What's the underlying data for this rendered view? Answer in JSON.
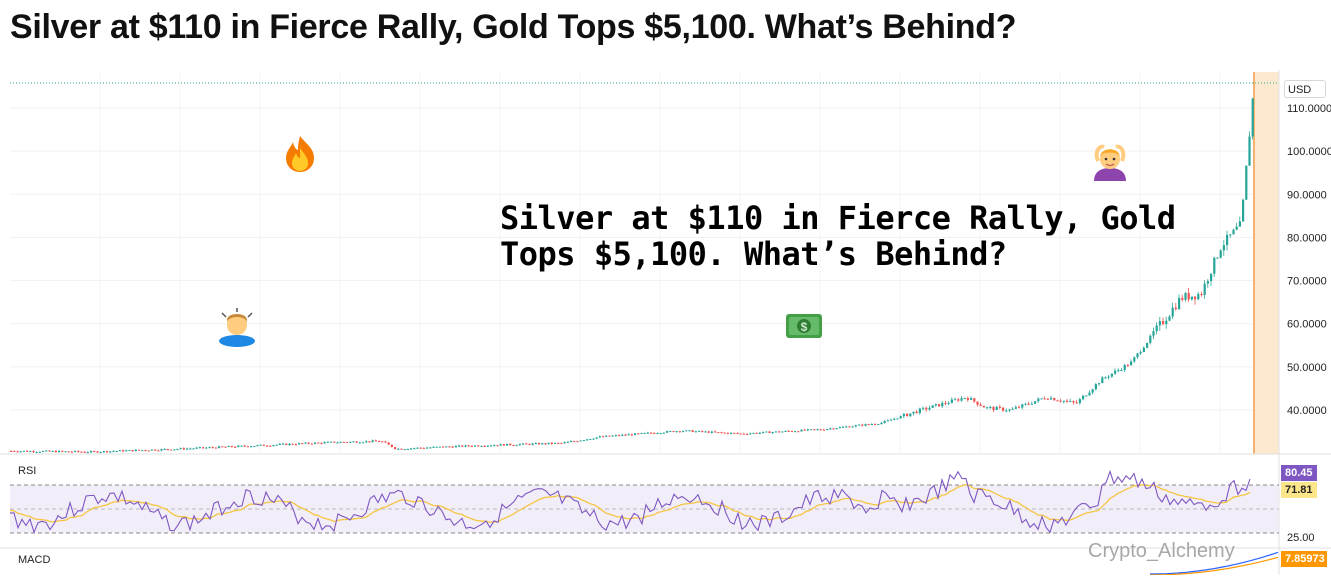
{
  "headline": "Silver at $110 in Fierce Rally, Gold Tops $5,100. What’s Behind?",
  "overlay_title_line1": "Silver at $110 in Fierce Rally, Gold",
  "overlay_title_line2": "Tops $5,100. What’s Behind?",
  "currency_label": "USD",
  "price_axis": {
    "ticks": [
      "110.0000",
      "100.0000",
      "90.0000",
      "80.0000",
      "70.0000",
      "60.0000",
      "50.0000",
      "40.0000"
    ]
  },
  "rsi": {
    "label": "RSI",
    "value": "80.45",
    "ma_value": "71.81",
    "lower_level": "25.00",
    "value_color": "#7e57c2",
    "ma_color": "#f5c542"
  },
  "macd": {
    "label": "MACD",
    "value": "7.85973"
  },
  "watermark": "Crypto_Alchemy",
  "colors": {
    "up": "#26a69a",
    "down": "#ef5350",
    "highlight_band": "#fde9cf",
    "highlight_line": "#f0a050"
  },
  "emojis": [
    "fire-emoji",
    "person-bowing-emoji",
    "money-emoji",
    "person-gesturing-ok-emoji"
  ]
}
